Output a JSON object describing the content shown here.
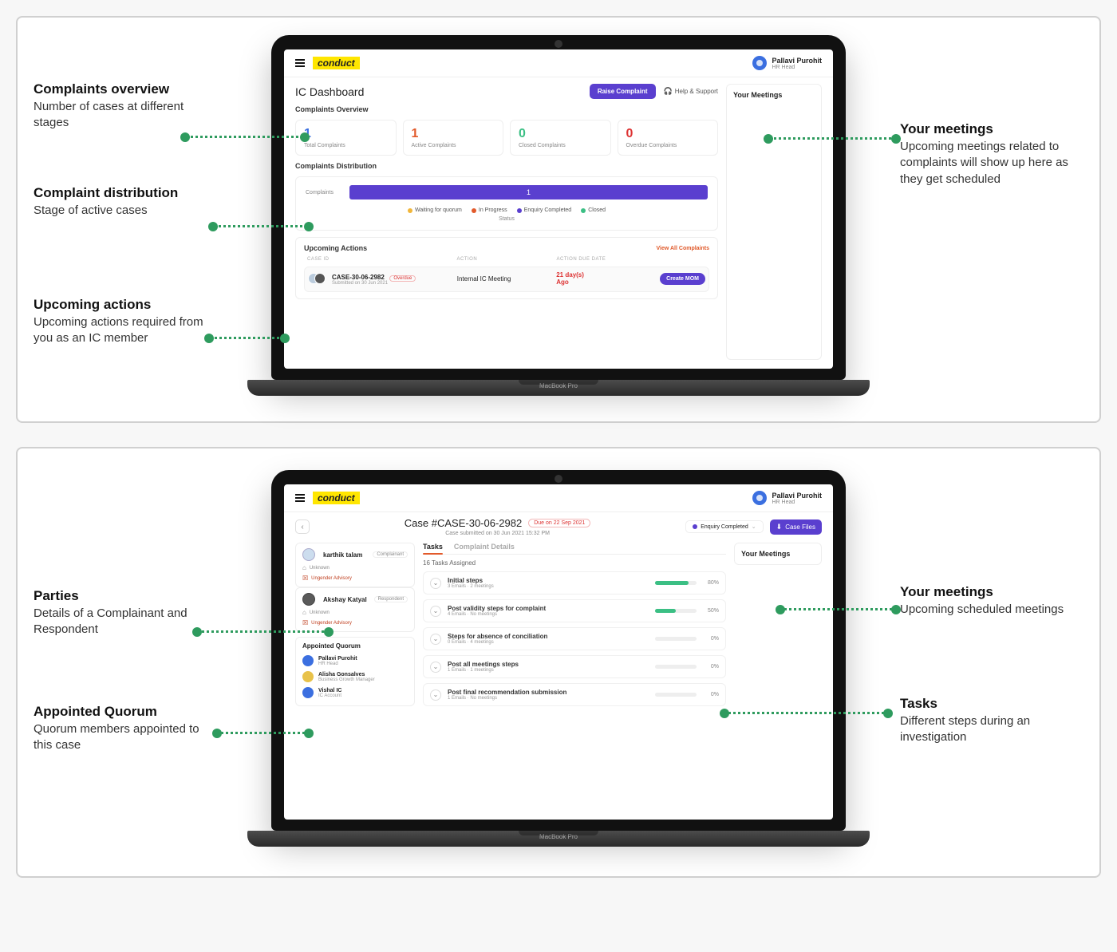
{
  "colors": {
    "accent": "#5a3fcf",
    "highlight": "#ffe600",
    "blue": "#3b6fe0",
    "orange": "#e25a2b",
    "green": "#3bbf84",
    "dotGreen": "#2e9b5e",
    "red": "#d33"
  },
  "panel1": {
    "annotations": {
      "left": [
        {
          "title": "Complaints overview",
          "desc": "Number of cases at different stages"
        },
        {
          "title": "Complaint distribution",
          "desc": "Stage of active cases"
        },
        {
          "title": "Upcoming actions",
          "desc": "Upcoming actions required from you as an IC member"
        }
      ],
      "right": [
        {
          "title": "Your meetings",
          "desc": "Upcoming meetings related to complaints will show up here as they get scheduled"
        }
      ]
    },
    "brand": "conduct",
    "user": {
      "name": "Pallavi Purohit",
      "role": "HR Head"
    },
    "dash_title": "IC Dashboard",
    "raise_btn": "Raise Complaint",
    "help": "Help & Support",
    "overview_label": "Complaints Overview",
    "stats": [
      {
        "value": "1",
        "label": "Total Complaints",
        "color": "#3b6fe0"
      },
      {
        "value": "1",
        "label": "Active Complaints",
        "color": "#e25a2b"
      },
      {
        "value": "0",
        "label": "Closed Complaints",
        "color": "#3bbf84"
      },
      {
        "value": "0",
        "label": "Overdue Complaints",
        "color": "#d33"
      }
    ],
    "dist_label": "Complaints Distribution",
    "dist_axis": "Complaints",
    "dist_bar_value": "1",
    "dist_bar_color": "#5a3fcf",
    "dist_legend": [
      {
        "label": "Waiting for quorum",
        "color": "#f1b63a"
      },
      {
        "label": "In Progress",
        "color": "#e25a2b"
      },
      {
        "label": "Enquiry Completed",
        "color": "#5a3fcf"
      },
      {
        "label": "Closed",
        "color": "#3bbf84"
      }
    ],
    "dist_status": "Status",
    "upcoming_label": "Upcoming Actions",
    "view_all": "View All Complaints",
    "table_headers": [
      "CASE ID",
      "ACTION",
      "ACTION DUE DATE",
      ""
    ],
    "action": {
      "case_id": "CASE-30-06-2982",
      "overdue_badge": "Overdue",
      "submitted": "Submitted on 30 Jun 2021",
      "action_name": "Internal IC Meeting",
      "due_top": "21 day(s)",
      "due_bot": "Ago",
      "btn": "Create MOM"
    },
    "meetings_title": "Your Meetings"
  },
  "panel2": {
    "annotations": {
      "left": [
        {
          "title": "Parties",
          "desc": "Details of a Complainant and Respondent"
        },
        {
          "title": "Appointed Quorum",
          "desc": "Quorum members appointed to this case"
        }
      ],
      "right": [
        {
          "title": "Your meetings",
          "desc": "Upcoming scheduled meetings"
        },
        {
          "title": "Tasks",
          "desc": "Different steps during an investigation"
        }
      ]
    },
    "brand": "conduct",
    "user": {
      "name": "Pallavi Purohit",
      "role": "HR Head"
    },
    "case_title": "Case #CASE-30-06-2982",
    "due_pill": "Due on 22 Sep 2021",
    "case_sub": "Case submitted on 30 Jun 2021 15:32 PM",
    "status": {
      "label": "Enquiry Completed",
      "color": "#5a3fcf"
    },
    "files_btn": "Case Files",
    "parties": [
      {
        "name": "karthik talam",
        "role": "Complainant",
        "meta1": "Unknown",
        "meta2": "Ungender Advisory",
        "dark": false
      },
      {
        "name": "Akshay Katyal",
        "role": "Respondent",
        "meta1": "Unknown",
        "meta2": "Ungender Advisory",
        "dark": true
      }
    ],
    "quorum_title": "Appointed Quorum",
    "quorum": [
      {
        "name": "Pallavi Purohit",
        "role": "HR Head",
        "color": "#3b6fe0"
      },
      {
        "name": "Alisha Gonsalves",
        "role": "Business Growth Manager",
        "color": "#e8c24a"
      },
      {
        "name": "Vishal IC",
        "role": "IC Account",
        "color": "#3b6fe0"
      }
    ],
    "tabs": [
      {
        "label": "Tasks",
        "active": true
      },
      {
        "label": "Complaint Details",
        "active": false
      }
    ],
    "task_count": "16 Tasks Assigned",
    "tasks": [
      {
        "title": "Initial steps",
        "sub": "3 Emails · 2 meetings",
        "pct": 80,
        "color": "#3bbf84"
      },
      {
        "title": "Post validity steps for complaint",
        "sub": "4 Emails · No meetings",
        "pct": 50,
        "color": "#3bbf84"
      },
      {
        "title": "Steps for absence of conciliation",
        "sub": "0 Emails · 4 meetings",
        "pct": 0,
        "color": "#ccc"
      },
      {
        "title": "Post all meetings steps",
        "sub": "1 Emails · 1 meetings",
        "pct": 0,
        "color": "#ccc"
      },
      {
        "title": "Post final recommendation submission",
        "sub": "1 Emails · No meetings",
        "pct": 0,
        "color": "#ccc"
      }
    ],
    "meetings_title": "Your Meetings"
  }
}
